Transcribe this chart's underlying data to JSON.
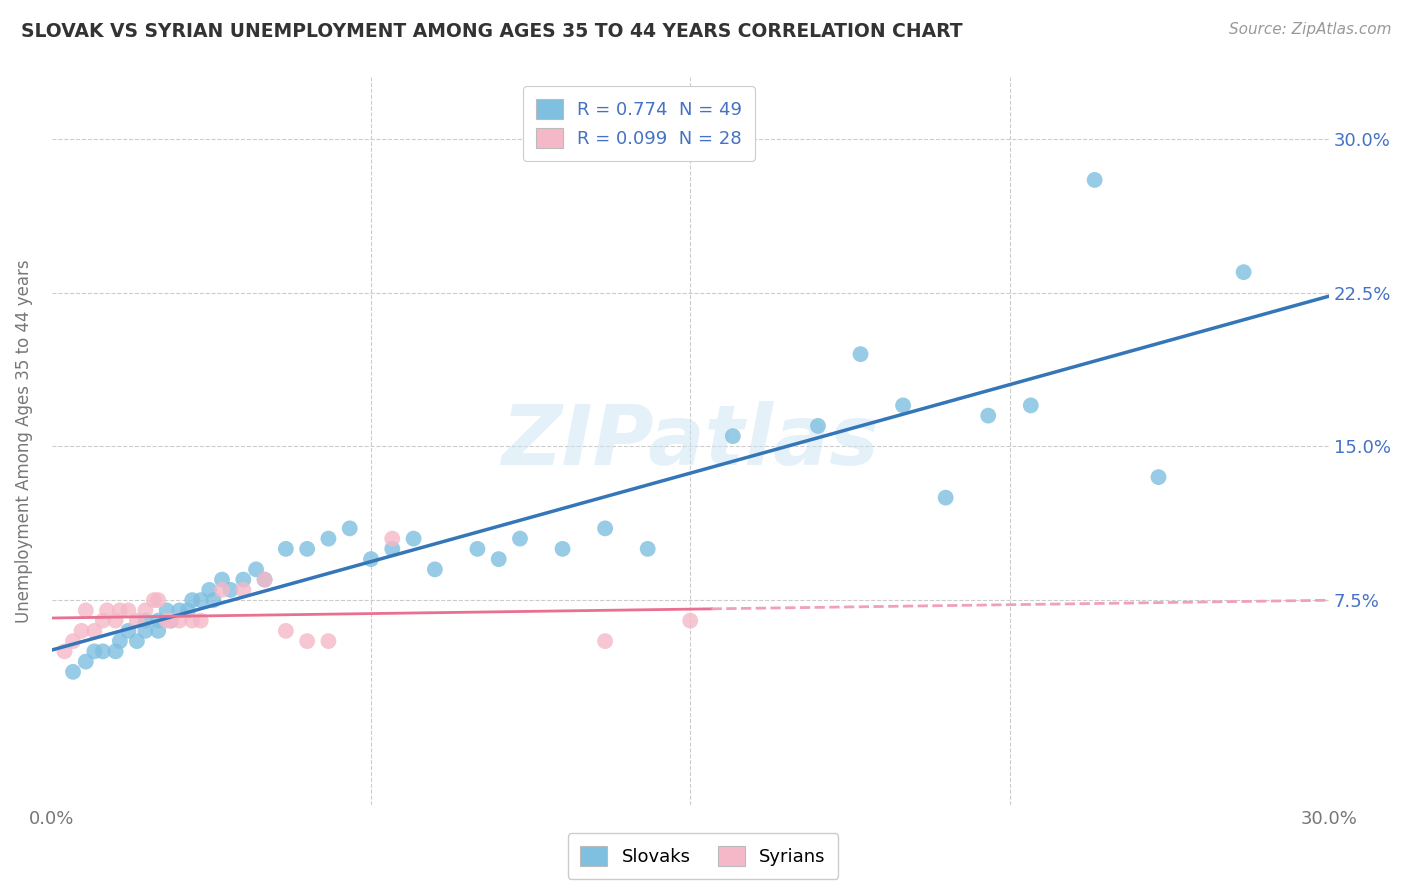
{
  "title": "SLOVAK VS SYRIAN UNEMPLOYMENT AMONG AGES 35 TO 44 YEARS CORRELATION CHART",
  "source": "Source: ZipAtlas.com",
  "ylabel": "Unemployment Among Ages 35 to 44 years",
  "xlim": [
    0.0,
    0.3
  ],
  "ylim": [
    -0.025,
    0.33
  ],
  "xticks": [
    0.0,
    0.075,
    0.15,
    0.225,
    0.3
  ],
  "xticklabels": [
    "0.0%",
    "",
    "",
    "",
    "30.0%"
  ],
  "yticks_right": [
    0.075,
    0.15,
    0.225,
    0.3
  ],
  "yticklabels_right": [
    "7.5%",
    "15.0%",
    "22.5%",
    "30.0%"
  ],
  "grid_yticks": [
    0.075,
    0.15,
    0.225,
    0.3
  ],
  "grid_xticks": [
    0.075,
    0.15,
    0.225
  ],
  "background_color": "#ffffff",
  "grid_color": "#cccccc",
  "watermark": "ZIPatlas",
  "legend_blue_label": "R = 0.774  N = 49",
  "legend_pink_label": "R = 0.099  N = 28",
  "blue_scatter_color": "#7fbfdf",
  "pink_scatter_color": "#f5b8c8",
  "blue_line_color": "#3476b8",
  "pink_line_solid_color": "#e87090",
  "pink_line_dash_color": "#f0a0b8",
  "label_color": "#4472c4",
  "tick_label_color": "#4472c4",
  "slovak_points_x": [
    0.005,
    0.008,
    0.01,
    0.012,
    0.015,
    0.016,
    0.018,
    0.02,
    0.022,
    0.022,
    0.025,
    0.025,
    0.027,
    0.028,
    0.03,
    0.032,
    0.033,
    0.035,
    0.037,
    0.038,
    0.04,
    0.042,
    0.045,
    0.048,
    0.05,
    0.055,
    0.06,
    0.065,
    0.07,
    0.075,
    0.08,
    0.085,
    0.09,
    0.1,
    0.105,
    0.11,
    0.12,
    0.13,
    0.14,
    0.16,
    0.18,
    0.19,
    0.2,
    0.21,
    0.22,
    0.23,
    0.245,
    0.26,
    0.28
  ],
  "slovak_points_y": [
    0.04,
    0.045,
    0.05,
    0.05,
    0.05,
    0.055,
    0.06,
    0.055,
    0.065,
    0.06,
    0.065,
    0.06,
    0.07,
    0.065,
    0.07,
    0.07,
    0.075,
    0.075,
    0.08,
    0.075,
    0.085,
    0.08,
    0.085,
    0.09,
    0.085,
    0.1,
    0.1,
    0.105,
    0.11,
    0.095,
    0.1,
    0.105,
    0.09,
    0.1,
    0.095,
    0.105,
    0.1,
    0.11,
    0.1,
    0.155,
    0.16,
    0.195,
    0.17,
    0.125,
    0.165,
    0.17,
    0.28,
    0.135,
    0.235
  ],
  "syrian_points_x": [
    0.003,
    0.005,
    0.007,
    0.008,
    0.01,
    0.012,
    0.013,
    0.015,
    0.016,
    0.018,
    0.02,
    0.022,
    0.024,
    0.025,
    0.027,
    0.028,
    0.03,
    0.033,
    0.035,
    0.04,
    0.045,
    0.05,
    0.055,
    0.06,
    0.065,
    0.08,
    0.13,
    0.15
  ],
  "syrian_points_y": [
    0.05,
    0.055,
    0.06,
    0.07,
    0.06,
    0.065,
    0.07,
    0.065,
    0.07,
    0.07,
    0.065,
    0.07,
    0.075,
    0.075,
    0.065,
    0.065,
    0.065,
    0.065,
    0.065,
    0.08,
    0.08,
    0.085,
    0.06,
    0.055,
    0.055,
    0.105,
    0.055,
    0.065
  ]
}
